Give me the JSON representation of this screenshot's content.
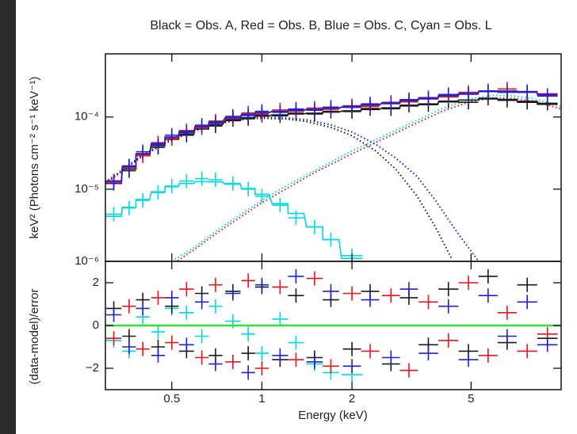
{
  "chart_data": [
    {
      "type": "line",
      "title": "Black = Obs. A, Red = Obs. B, Blue = Obs. C, Cyan = Obs. L",
      "ylabel": "keV² (Photons cm⁻² s⁻¹ keV⁻¹)",
      "xscale": "log",
      "yscale": "log",
      "xlim": [
        0.3,
        10
      ],
      "ylim": [
        1e-06,
        0.00075
      ],
      "yticks": [
        {
          "value": 1e-06,
          "label": "10⁻⁶"
        },
        {
          "value": 1e-05,
          "label": "10⁻⁵"
        },
        {
          "value": 0.0001,
          "label": "10⁻⁴"
        }
      ],
      "series": [
        {
          "color": "#00d8e0",
          "style": "dotted",
          "x": [
            0.5,
            0.6,
            0.7,
            0.8,
            1.0,
            1.2,
            1.5,
            2.0,
            2.5,
            3.0,
            4.0,
            5.0,
            6.0,
            7.0,
            8.0,
            9.0,
            10
          ],
          "values": [
            1e-06,
            1.6e-06,
            2.6e-06,
            3.8e-06,
            7e-06,
            1.1e-05,
            1.8e-05,
            3.4e-05,
            5.2e-05,
            7.5e-05,
            0.00013,
            0.00018,
            0.0002,
            0.000195,
            0.00018,
            0.00016,
            0.00014
          ]
        },
        {
          "color": "#1a1a1a",
          "style": "dotted",
          "x": [
            0.3,
            0.4,
            0.5,
            0.6,
            0.7,
            0.8,
            0.9,
            1.0,
            1.2,
            1.4,
            1.7,
            2.0,
            2.4,
            2.8,
            3.3,
            3.8,
            4.3
          ],
          "values": [
            1.2e-05,
            2.9e-05,
            4.8e-05,
            6.5e-05,
            7.9e-05,
            8.8e-05,
            9.4e-05,
            9.6e-05,
            9.4e-05,
            8.7e-05,
            7.2e-05,
            5.5e-05,
            3.4e-05,
            1.9e-05,
            8e-06,
            3e-06,
            1.1e-06
          ]
        },
        {
          "color": "#e8141e",
          "style": "dotted",
          "x": [
            0.5,
            0.6,
            0.7,
            0.8,
            1.0,
            1.2,
            1.5,
            2.0,
            2.5,
            3.0,
            4.0,
            5.0,
            6.0,
            7.0,
            8.0,
            9.0,
            10
          ],
          "values": [
            9e-07,
            1.5e-06,
            2.4e-06,
            3.5e-06,
            6.5e-06,
            1e-05,
            1.7e-05,
            3.1e-05,
            4.8e-05,
            6.9e-05,
            0.00012,
            0.000165,
            0.000184,
            0.00018,
            0.000166,
            0.000147,
            0.000129
          ]
        },
        {
          "color": "#2020d0",
          "style": "dotted",
          "x": [
            0.3,
            0.4,
            0.5,
            0.6,
            0.7,
            0.8,
            0.9,
            1.0,
            1.2,
            1.4,
            1.7,
            2.0,
            2.4,
            2.8,
            3.3,
            3.8,
            4.5,
            5.3
          ],
          "values": [
            1.25e-05,
            3e-05,
            5e-05,
            6.8e-05,
            8.2e-05,
            9.2e-05,
            9.8e-05,
            0.0001,
            9.8e-05,
            9.2e-05,
            7.8e-05,
            6.2e-05,
            4.2e-05,
            2.7e-05,
            1.5e-05,
            7e-06,
            2.5e-06,
            1e-06
          ]
        },
        {
          "color": "#00d8e0",
          "style": "step",
          "x": [
            0.32,
            0.36,
            0.4,
            0.45,
            0.5,
            0.56,
            0.63,
            0.7,
            0.8,
            0.9,
            1.0,
            1.15,
            1.3,
            1.5,
            1.7,
            2.0
          ],
          "values": [
            4.2e-06,
            5.6e-06,
            7.2e-06,
            9.2e-06,
            1.08e-05,
            1.2e-05,
            1.27e-05,
            1.26e-05,
            1.17e-05,
            1.02e-05,
            8.5e-06,
            6.3e-06,
            4.6e-06,
            3e-06,
            2e-06,
            1.1e-06
          ]
        },
        {
          "color": "#00d8e0",
          "style": "markers",
          "x": [
            0.32,
            0.36,
            0.4,
            0.45,
            0.5,
            0.56,
            0.63,
            0.7,
            0.8,
            0.9,
            1.0,
            1.15,
            1.3,
            1.5,
            1.7,
            2.0
          ],
          "values": [
            4.5e-06,
            5.5e-06,
            7e-06,
            9e-06,
            1.1e-05,
            1.3e-05,
            1.4e-05,
            1.35e-05,
            1.2e-05,
            1e-05,
            8e-06,
            6e-06,
            4e-06,
            3e-06,
            2e-06,
            1.2e-06
          ]
        },
        {
          "color": "#1a1a1a",
          "style": "step",
          "x": [
            0.32,
            0.36,
            0.4,
            0.45,
            0.5,
            0.56,
            0.63,
            0.7,
            0.8,
            0.9,
            1.0,
            1.15,
            1.3,
            1.5,
            1.7,
            2.0,
            2.3,
            2.7,
            3.1,
            3.6,
            4.2,
            4.9,
            5.7,
            6.6,
            7.7,
            9.0
          ],
          "values": [
            1.2e-05,
            1.9e-05,
            2.9e-05,
            4e-05,
            4.9e-05,
            5.8e-05,
            6.8e-05,
            7.8e-05,
            8.9e-05,
            9.8e-05,
            0.000103,
            0.000107,
            0.00011,
            0.000113,
            0.000117,
            0.000122,
            0.000127,
            0.000134,
            0.000142,
            0.000152,
            0.000162,
            0.000172,
            0.000178,
            0.000175,
            0.000165,
            0.00015
          ]
        },
        {
          "color": "#1a1a1a",
          "style": "markers",
          "x": [
            0.32,
            0.36,
            0.4,
            0.45,
            0.5,
            0.56,
            0.63,
            0.7,
            0.8,
            0.9,
            1.0,
            1.15,
            1.3,
            1.5,
            1.7,
            2.0,
            2.3,
            2.7,
            3.1,
            3.6,
            4.2,
            4.9,
            5.7,
            6.6,
            7.7,
            9.0
          ],
          "values": [
            1.3e-05,
            1.8e-05,
            3.1e-05,
            3.8e-05,
            5.1e-05,
            5.6e-05,
            7.1e-05,
            7.5e-05,
            9.2e-05,
            9.5e-05,
            0.000106,
            0.000104,
            0.000113,
            0.00011,
            0.00012,
            0.000119,
            0.000131,
            0.00013,
            0.000146,
            0.000148,
            0.000166,
            0.00016,
            0.000182,
            0.00017,
            0.00016,
            0.000155
          ]
        },
        {
          "color": "#e8141e",
          "style": "step",
          "x": [
            0.32,
            0.36,
            0.4,
            0.45,
            0.5,
            0.56,
            0.63,
            0.7,
            0.8,
            0.9,
            1.0,
            1.15,
            1.3,
            1.5,
            1.7,
            2.0,
            2.3,
            2.7,
            3.1,
            3.6,
            4.2,
            4.9,
            5.7,
            6.6,
            7.7,
            9.0
          ],
          "values": [
            1.25e-05,
            2e-05,
            3e-05,
            4.2e-05,
            5.2e-05,
            6.2e-05,
            7.3e-05,
            8.4e-05,
            9.7e-05,
            0.000108,
            0.000114,
            0.000119,
            0.000123,
            0.000127,
            0.000132,
            0.000138,
            0.000145,
            0.000155,
            0.000166,
            0.00018,
            0.000195,
            0.00021,
            0.000225,
            0.00023,
            0.000225,
            0.00021
          ]
        },
        {
          "color": "#e8141e",
          "style": "markers",
          "x": [
            0.32,
            0.36,
            0.4,
            0.45,
            0.5,
            0.56,
            0.63,
            0.7,
            0.8,
            0.9,
            1.0,
            1.15,
            1.3,
            1.5,
            1.7,
            2.0,
            2.3,
            2.7,
            3.1,
            3.6,
            4.2,
            4.9,
            5.7,
            6.6,
            7.7,
            9.0
          ],
          "values": [
            1.3e-05,
            2.1e-05,
            2.9e-05,
            4.4e-05,
            5e-05,
            6.5e-05,
            7.1e-05,
            8.8e-05,
            9.5e-05,
            0.000114,
            0.00011,
            0.000125,
            0.00012,
            0.000133,
            0.000128,
            0.000143,
            0.00014,
            0.00016,
            0.000162,
            0.000186,
            0.00019,
            0.00022,
            0.00023,
            0.000245,
            0.00022,
            0.0002
          ]
        },
        {
          "color": "#2020d0",
          "style": "step",
          "x": [
            0.32,
            0.36,
            0.4,
            0.45,
            0.5,
            0.56,
            0.63,
            0.7,
            0.8,
            0.9,
            1.0,
            1.15,
            1.3,
            1.5,
            1.7,
            2.0,
            2.3,
            2.7,
            3.1,
            3.6,
            4.2,
            4.9,
            5.7,
            6.6,
            7.7,
            9.0
          ],
          "values": [
            1.3e-05,
            2.05e-05,
            3.1e-05,
            4.3e-05,
            5.3e-05,
            6.3e-05,
            7.4e-05,
            8.5e-05,
            9.8e-05,
            0.000109,
            0.000115,
            0.00012,
            0.000124,
            0.000128,
            0.000133,
            0.00014,
            0.000147,
            0.000157,
            0.000169,
            0.000183,
            0.000198,
            0.000212,
            0.000225,
            0.000228,
            0.00022,
            0.000205
          ]
        },
        {
          "color": "#2020d0",
          "style": "markers",
          "x": [
            0.32,
            0.36,
            0.4,
            0.45,
            0.5,
            0.56,
            0.63,
            0.7,
            0.8,
            0.9,
            1.0,
            1.15,
            1.3,
            1.5,
            1.7,
            2.0,
            2.3,
            2.7,
            3.1,
            3.6,
            4.2,
            4.9,
            5.7,
            6.6,
            7.7,
            9.0
          ],
          "values": [
            1.2e-05,
            2.1e-05,
            3.3e-05,
            4.1e-05,
            5.6e-05,
            6.1e-05,
            7.7e-05,
            8.2e-05,
            0.000102,
            0.000105,
            0.00012,
            0.000116,
            0.000129,
            0.000124,
            0.000137,
            0.000136,
            0.000152,
            0.000153,
            0.000174,
            0.000178,
            0.000205,
            0.000207,
            0.00023,
            0.00022,
            0.000225,
            0.000195
          ]
        }
      ]
    },
    {
      "type": "scatter",
      "ylabel": "(data-model)/error",
      "xlabel": "Energy (keV)",
      "xscale": "log",
      "xlim": [
        0.3,
        10
      ],
      "ylim": [
        -3,
        3
      ],
      "xticks": [
        0.5,
        1,
        2,
        5
      ],
      "yticks": [
        {
          "value": -2,
          "label": "−2"
        },
        0,
        2
      ],
      "reference_line": {
        "value": 0,
        "color": "#33dd33"
      },
      "series": [
        {
          "color": "#00d8e0",
          "x": [
            0.32,
            0.36,
            0.4,
            0.45,
            0.5,
            0.56,
            0.63,
            0.7,
            0.8,
            0.9,
            1.0,
            1.15,
            1.3,
            1.5,
            1.7,
            2.0
          ],
          "values": [
            -0.7,
            -1.2,
            0.4,
            -0.3,
            0.8,
            0.6,
            -0.5,
            0.9,
            0.2,
            -0.4,
            -1.3,
            0.3,
            -0.8,
            -1.8,
            -2.2,
            -2.3
          ]
        },
        {
          "color": "#1a1a1a",
          "x": [
            0.32,
            0.36,
            0.4,
            0.45,
            0.5,
            0.56,
            0.63,
            0.7,
            0.8,
            0.9,
            1.0,
            1.15,
            1.3,
            1.5,
            1.7,
            2.0,
            2.3,
            2.7,
            3.1,
            3.6,
            4.2,
            4.9,
            5.7,
            6.6,
            7.7,
            9.0
          ],
          "values": [
            0.8,
            -0.5,
            1.2,
            -1.0,
            0.9,
            -1.2,
            1.5,
            -1.4,
            1.6,
            -1.3,
            1.8,
            -1.6,
            1.4,
            -1.5,
            1.2,
            -1.1,
            1.6,
            -1.8,
            1.3,
            -0.9,
            1.7,
            -1.2,
            2.3,
            -0.8,
            1.9,
            -0.6
          ]
        },
        {
          "color": "#e8141e",
          "x": [
            0.32,
            0.36,
            0.4,
            0.45,
            0.5,
            0.56,
            0.63,
            0.7,
            0.8,
            0.9,
            1.0,
            1.15,
            1.3,
            1.5,
            1.7,
            2.0,
            2.3,
            2.7,
            3.1,
            3.6,
            4.2,
            4.9,
            5.7,
            6.6,
            7.7,
            9.0
          ],
          "values": [
            -0.6,
            0.9,
            -1.1,
            1.3,
            -0.8,
            1.7,
            -1.5,
            1.9,
            -1.7,
            2.1,
            -2.0,
            1.8,
            -1.6,
            2.2,
            -1.9,
            1.5,
            -1.2,
            1.4,
            -2.1,
            1.1,
            -0.7,
            2.0,
            -1.4,
            0.6,
            -1.2,
            -0.4
          ]
        },
        {
          "color": "#2020d0",
          "x": [
            0.32,
            0.36,
            0.4,
            0.45,
            0.5,
            0.56,
            0.63,
            0.7,
            0.8,
            0.9,
            1.0,
            1.15,
            1.3,
            1.5,
            1.7,
            2.0,
            2.3,
            2.7,
            3.1,
            3.6,
            4.2,
            4.9,
            5.7,
            6.6,
            7.7,
            9.0
          ],
          "values": [
            0.5,
            -1.0,
            0.8,
            -1.4,
            1.3,
            -0.9,
            1.1,
            -1.8,
            1.5,
            -2.2,
            1.9,
            -1.4,
            2.3,
            -1.7,
            1.6,
            -1.9,
            1.2,
            -1.5,
            1.7,
            -1.3,
            0.9,
            -1.6,
            1.4,
            -0.5,
            1.1,
            -0.9
          ]
        }
      ]
    }
  ]
}
